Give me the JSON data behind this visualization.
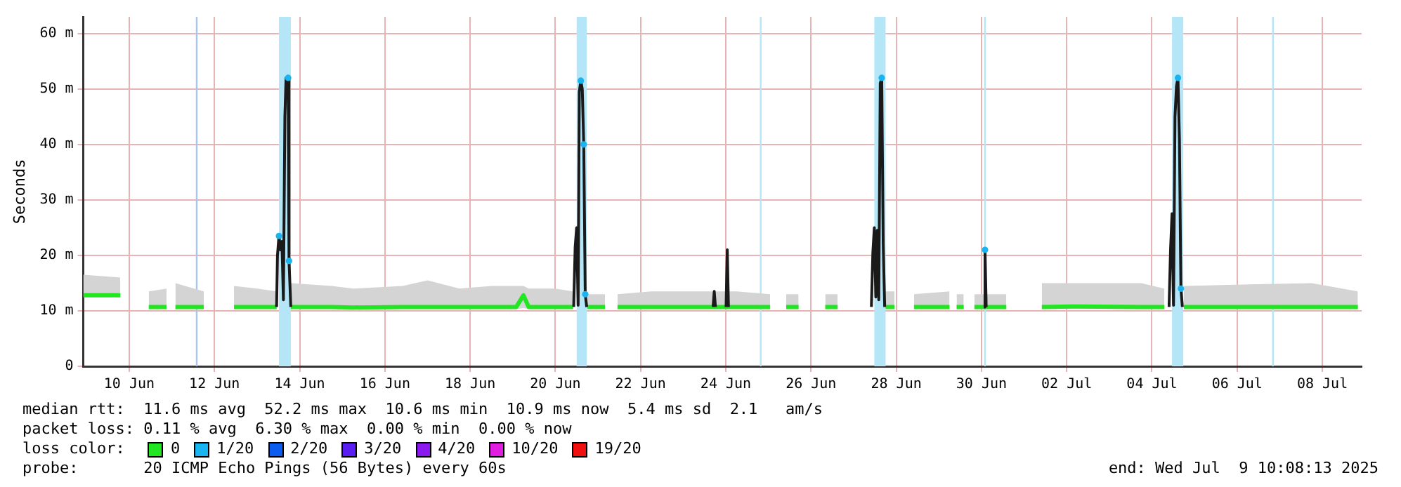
{
  "chart_data": {
    "type": "line",
    "ylabel": "Seconds",
    "legend_title": "loss color:",
    "legend": "bottom",
    "grid": true,
    "xlim": [
      "2025-06-09T10:08",
      "2025-07-09T10:08"
    ],
    "xticks": [
      {
        "value": "2025-06-10T12:00",
        "label": "10 Jun"
      },
      {
        "value": "2025-06-12T12:00",
        "label": "12 Jun"
      },
      {
        "value": "2025-06-14T12:00",
        "label": "14 Jun"
      },
      {
        "value": "2025-06-16T12:00",
        "label": "16 Jun"
      },
      {
        "value": "2025-06-18T12:00",
        "label": "18 Jun"
      },
      {
        "value": "2025-06-20T12:00",
        "label": "20 Jun"
      },
      {
        "value": "2025-06-22T12:00",
        "label": "22 Jun"
      },
      {
        "value": "2025-06-24T12:00",
        "label": "24 Jun"
      },
      {
        "value": "2025-06-26T12:00",
        "label": "26 Jun"
      },
      {
        "value": "2025-06-28T12:00",
        "label": "28 Jun"
      },
      {
        "value": "2025-06-30T12:00",
        "label": "30 Jun"
      },
      {
        "value": "2025-07-02T12:00",
        "label": "02 Jul"
      },
      {
        "value": "2025-07-04T12:00",
        "label": "04 Jul"
      },
      {
        "value": "2025-07-06T12:00",
        "label": "06 Jul"
      },
      {
        "value": "2025-07-08T12:00",
        "label": "08 Jul"
      }
    ],
    "ylim": [
      0,
      63
    ],
    "yticks": [
      0,
      {
        "value": 10,
        "label": "10 m"
      },
      {
        "value": 20,
        "label": "20 m"
      },
      {
        "value": 30,
        "label": "30 m"
      },
      {
        "value": 40,
        "label": "40 m"
      },
      {
        "value": 50,
        "label": "50 m"
      },
      {
        "value": 60,
        "label": "60 m"
      }
    ],
    "bands": [
      {
        "axis": "x",
        "from": "2025-06-14T00:20",
        "to": "2025-06-14T07:00",
        "color": "#b4e6f8"
      },
      {
        "axis": "x",
        "from": "2025-06-21T00:00",
        "to": "2025-06-21T05:40",
        "color": "#b4e6f8"
      },
      {
        "axis": "x",
        "from": "2025-06-27T23:40",
        "to": "2025-06-28T06:00",
        "color": "#b4e6f8"
      },
      {
        "axis": "x",
        "from": "2025-07-04T23:20",
        "to": "2025-07-05T05:40",
        "color": "#b4e6f8"
      }
    ],
    "ref_lines": [
      {
        "axis": "x",
        "value": "2025-06-12T02:00",
        "color": "#a8c4f4"
      },
      {
        "axis": "x",
        "value": "2025-06-25T07:40",
        "color": "#b4e6f8"
      },
      {
        "axis": "x",
        "value": "2025-06-30T14:00",
        "color": "#b4e6f8"
      },
      {
        "axis": "x",
        "value": "2025-07-07T08:10",
        "color": "#b4e6f8"
      }
    ],
    "series": [
      {
        "name": "0",
        "type": "line",
        "color": "#22e622",
        "x": [
          "2025-06-09T10:10",
          "2025-06-10T07:00",
          "2025-06-10T12:00",
          "2025-06-10T23:00",
          "2025-06-11T09:00",
          "2025-06-11T11:00",
          "2025-06-11T14:00",
          "2025-06-12T06:00",
          "2025-06-12T12:00",
          "2025-06-12T23:00",
          "2025-06-13T12:00",
          "2025-06-13T23:00",
          "2025-06-14T02:00",
          "2025-06-14T07:00",
          "2025-06-15T06:00",
          "2025-06-15T18:00",
          "2025-06-16T22:00",
          "2025-06-17T12:00",
          "2025-06-18T06:00",
          "2025-06-19T00:00",
          "2025-06-19T14:00",
          "2025-06-19T18:00",
          "2025-06-19T21:00",
          "2025-06-20T12:00",
          "2025-06-20T22:00",
          "2025-06-21T00:00",
          "2025-06-21T06:00",
          "2025-06-21T16:00",
          "2025-06-21T19:00",
          "2025-06-21T23:00",
          "2025-06-22T18:00",
          "2025-06-23T12:00",
          "2025-06-24T06:00",
          "2025-06-24T18:00",
          "2025-06-25T13:00",
          "2025-06-25T16:00",
          "2025-06-25T22:00",
          "2025-06-26T05:00",
          "2025-06-26T10:00",
          "2025-06-26T20:00",
          "2025-06-27T03:00",
          "2025-06-27T10:00",
          "2025-06-28T06:00",
          "2025-06-28T11:00",
          "2025-06-28T15:00",
          "2025-06-28T22:00",
          "2025-06-29T18:00",
          "2025-06-29T20:00",
          "2025-06-29T22:00",
          "2025-06-30T02:00",
          "2025-06-30T04:00",
          "2025-06-30T08:00",
          "2025-07-01T02:00",
          "2025-07-01T06:00",
          "2025-07-01T22:00",
          "2025-07-02T18:00",
          "2025-07-04T06:00",
          "2025-07-04T19:00",
          "2025-07-04T21:00",
          "2025-07-05T06:00",
          "2025-07-08T06:00",
          "2025-07-09T08:00"
        ],
        "values": [
          12.8,
          12.8,
          null,
          10.7,
          10.7,
          null,
          10.7,
          10.7,
          null,
          10.7,
          10.7,
          10.7,
          null,
          10.7,
          10.7,
          10.6,
          10.7,
          10.7,
          10.7,
          10.7,
          10.7,
          12.8,
          10.7,
          10.7,
          10.7,
          null,
          10.7,
          10.7,
          null,
          10.7,
          10.7,
          10.7,
          10.7,
          10.7,
          10.7,
          null,
          10.7,
          10.7,
          null,
          10.7,
          10.7,
          null,
          10.7,
          10.7,
          null,
          10.7,
          10.7,
          null,
          10.7,
          10.7,
          null,
          10.7,
          10.7,
          null,
          10.7,
          10.8,
          10.7,
          10.7,
          null,
          10.7,
          10.7,
          10.7
        ],
        "lower": [
          12.5,
          12.5,
          null,
          10.3,
          10.3,
          null,
          10.3,
          10.3,
          null,
          10.3,
          10.3,
          10.3,
          null,
          10.3,
          10.3,
          10.3,
          10.3,
          10.3,
          10.3,
          10.3,
          10.3,
          10.5,
          10.3,
          10.3,
          10.3,
          null,
          10.3,
          10.3,
          null,
          10.3,
          10.3,
          10.3,
          10.3,
          10.3,
          10.3,
          null,
          10.3,
          10.3,
          null,
          10.3,
          10.3,
          null,
          10.3,
          10.3,
          null,
          10.3,
          10.3,
          null,
          10.3,
          10.3,
          null,
          10.3,
          10.3,
          null,
          10.3,
          10.3,
          10.3,
          10.3,
          null,
          10.3,
          10.3,
          10.3
        ],
        "upper": [
          16.5,
          16,
          null,
          13.5,
          14,
          null,
          15,
          13.5,
          null,
          14.5,
          14,
          13.5,
          null,
          15,
          14.5,
          14,
          14.5,
          15.5,
          14,
          14.5,
          14.5,
          14.5,
          14,
          14,
          13.5,
          null,
          13,
          13,
          null,
          13,
          13.5,
          13.5,
          13.5,
          13.5,
          13,
          null,
          13,
          13,
          null,
          13,
          13,
          null,
          13.5,
          13.5,
          null,
          13,
          13.5,
          null,
          13,
          13,
          null,
          13,
          13,
          null,
          15,
          15,
          15,
          14,
          null,
          14.5,
          15,
          13.5
        ]
      },
      {
        "type": "line",
        "color": "#1a1a1a",
        "x": [
          "2025-06-13T23:00",
          "2025-06-13T23:30",
          "2025-06-14T00:20",
          "2025-06-14T01:10",
          "2025-06-14T02:00",
          "2025-06-14T02:50",
          "2025-06-14T03:40",
          "2025-06-14T04:20",
          "2025-06-14T05:30",
          "2025-06-14T06:00",
          "2025-06-14T07:00",
          "2025-06-15T00:00",
          "2025-06-20T22:20",
          "2025-06-20T23:10",
          "2025-06-21T00:00",
          "2025-06-21T00:50",
          "2025-06-21T01:30",
          "2025-06-21T02:20",
          "2025-06-21T03:10",
          "2025-06-21T04:00",
          "2025-06-21T04:50",
          "2025-06-21T05:40",
          "2025-06-22T00:00",
          "2025-06-24T04:50",
          "2025-06-24T05:30",
          "2025-06-24T06:10",
          "2025-06-24T09:00",
          "2025-06-24T12:10",
          "2025-06-24T12:50",
          "2025-06-24T13:30",
          "2025-06-25T00:00",
          "2025-06-27T22:00",
          "2025-06-27T22:50",
          "2025-06-27T23:40",
          "2025-06-28T00:30",
          "2025-06-28T01:20",
          "2025-06-28T02:10",
          "2025-06-28T03:00",
          "2025-06-28T03:50",
          "2025-06-28T04:40",
          "2025-06-28T05:30",
          "2025-06-29T00:00",
          "2025-06-30T13:20",
          "2025-06-30T14:00",
          "2025-06-30T14:40",
          "2025-07-01T00:00",
          "2025-07-04T21:40",
          "2025-07-04T22:30",
          "2025-07-04T23:20",
          "2025-07-05T00:10",
          "2025-07-05T01:00",
          "2025-07-05T01:50",
          "2025-07-05T02:40",
          "2025-07-05T03:30",
          "2025-07-05T04:20",
          "2025-07-05T05:10"
        ],
        "values": [
          10.7,
          20,
          23.5,
          21,
          22.5,
          12,
          45,
          52,
          52,
          19,
          10.7,
          null,
          10.7,
          21.5,
          25,
          11,
          49.5,
          51.5,
          50,
          40,
          13,
          10.7,
          null,
          10.7,
          13.5,
          10.7,
          null,
          10.7,
          21,
          10.7,
          null,
          10.7,
          20.5,
          25,
          12.5,
          24.5,
          12,
          51,
          52,
          22,
          10.7,
          null,
          10.7,
          21,
          10.7,
          null,
          10.7,
          21,
          27.5,
          11,
          45,
          50.5,
          52,
          41,
          14,
          10.7
        ]
      },
      {
        "name": "1/20",
        "type": "scatter",
        "color": "#1ab4f0",
        "x": [
          "2025-06-14T00:20",
          "2025-06-14T05:30",
          "2025-06-14T06:00",
          "2025-06-21T02:20",
          "2025-06-21T04:00",
          "2025-06-21T04:50",
          "2025-06-28T03:50",
          "2025-06-30T14:00",
          "2025-07-05T02:40",
          "2025-07-05T04:20"
        ],
        "values": [
          23.5,
          52,
          19,
          51.5,
          40,
          13,
          52,
          21,
          52,
          14
        ]
      },
      {
        "name": "2/20",
        "type": "scatter",
        "color": "#0c5cf0"
      },
      {
        "name": "3/20",
        "type": "scatter",
        "color": "#5a1ef0"
      },
      {
        "name": "4/20",
        "type": "scatter",
        "color": "#8a1af0"
      },
      {
        "name": "10/20",
        "type": "scatter",
        "color": "#e01ee0"
      },
      {
        "name": "19/20",
        "type": "scatter",
        "color": "#f01010"
      }
    ],
    "annotations": [
      "median rtt:  11.6 ms avg  52.2 ms max  10.6 ms min  10.9 ms now  5.4 ms sd  2.1   am/s",
      "packet loss: 0.11 % avg  6.30 % max  0.00 % min  0.00 % now",
      "probe:       20 ICMP Echo Pings (56 Bytes) every 60s",
      "end: Wed Jul  9 10:08:13 2025"
    ]
  }
}
